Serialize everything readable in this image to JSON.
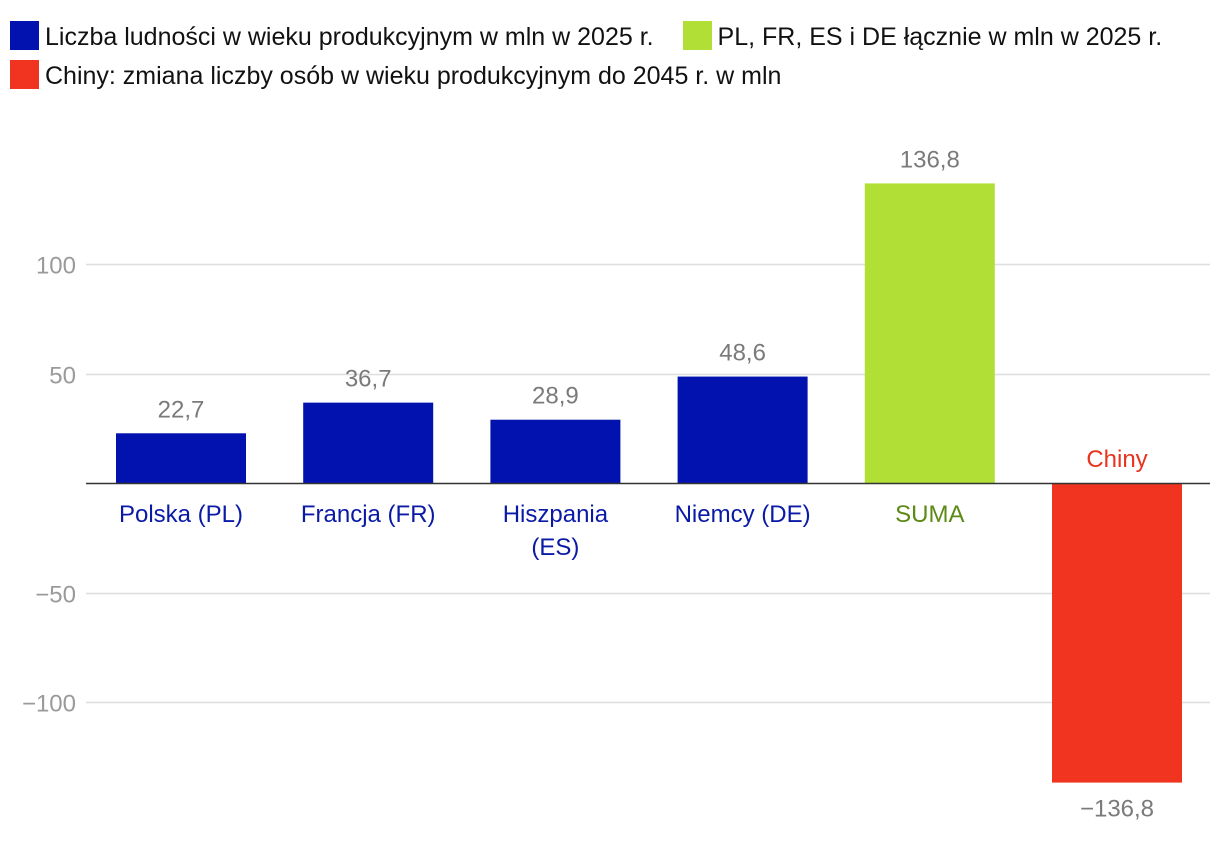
{
  "legend": {
    "items": [
      {
        "label": "Liczba ludności w wieku produkcyjnym w mln w 2025 r.",
        "color": "#0212ae"
      },
      {
        "label": "PL, FR, ES i DE łącznie w mln w 2025 r.",
        "color": "#b2df36"
      },
      {
        "label": "Chiny: zmiana liczby osób w wieku produkcyjnym do 2045 r. w mln",
        "color": "#f0341f"
      }
    ]
  },
  "chart_data": {
    "type": "bar",
    "title": "",
    "xlabel": "",
    "ylabel": "",
    "ylim": [
      -150,
      150
    ],
    "yticks": [
      -100,
      -50,
      50,
      100
    ],
    "ytick_labels": [
      "−100",
      "−50",
      "50",
      "100"
    ],
    "grid": true,
    "categories": [
      "Polska (PL)",
      "Francja (FR)",
      "Hiszpania (ES)",
      "Niemcy (DE)",
      "SUMA",
      "Chiny"
    ],
    "category_lines": [
      [
        "Polska (PL)"
      ],
      [
        "Francja (FR)"
      ],
      [
        "Hiszpania",
        "(ES)"
      ],
      [
        "Niemcy (DE)"
      ],
      [
        "SUMA"
      ],
      [
        "Chiny"
      ]
    ],
    "values": [
      22.7,
      36.7,
      28.9,
      48.6,
      136.8,
      -136.8
    ],
    "value_labels": [
      "22,7",
      "36,7",
      "28,9",
      "48,6",
      "136,8",
      "−136,8"
    ],
    "bar_colors": [
      "#0212ae",
      "#0212ae",
      "#0212ae",
      "#0212ae",
      "#b2df36",
      "#f0341f"
    ],
    "label_colors": [
      "#0a1aa6",
      "#0a1aa6",
      "#0a1aa6",
      "#0a1aa6",
      "#5c8a14",
      "#e8341f"
    ],
    "series": [
      {
        "name": "Liczba ludności w wieku produkcyjnym w mln w 2025 r.",
        "values": [
          22.7,
          36.7,
          28.9,
          48.6,
          null,
          null
        ]
      },
      {
        "name": "PL, FR, ES i DE łącznie w mln w 2025 r.",
        "values": [
          null,
          null,
          null,
          null,
          136.8,
          null
        ]
      },
      {
        "name": "Chiny: zmiana liczby osób w wieku produkcyjnym do 2045 r. w mln",
        "values": [
          null,
          null,
          null,
          null,
          null,
          -136.8
        ]
      }
    ]
  }
}
